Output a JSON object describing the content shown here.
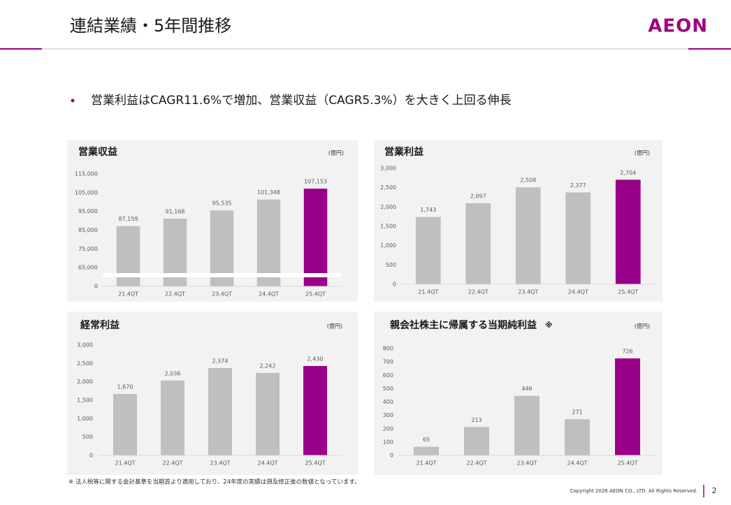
{
  "header": {
    "title": "連結業績・5年間推移",
    "logo": "AEON"
  },
  "bullet": "営業利益はCAGR11.6%で増加、営業収益（CAGR5.3%）を大きく上回る伸長",
  "chart_data": [
    {
      "type": "bar",
      "title": "営業収益",
      "unit": "(億円)",
      "categories": [
        "21.4QT",
        "22.4QT",
        "23.4QT",
        "24.4QT",
        "25.4QT"
      ],
      "values": [
        87159,
        91168,
        95535,
        101348,
        107153
      ],
      "value_labels": [
        "87,159",
        "91,168",
        "95,535",
        "101,348",
        "107,153"
      ],
      "colors": [
        "#bfbfbf",
        "#bfbfbf",
        "#bfbfbf",
        "#bfbfbf",
        "#990088"
      ],
      "ylim": [
        0,
        115000
      ],
      "axis_break": [
        0,
        55000
      ],
      "yticks": [
        0,
        {
          "value": 65000,
          "label": "65,000"
        },
        {
          "value": 75000,
          "label": "75,000"
        },
        {
          "value": 85000,
          "label": "85,000"
        },
        {
          "value": 95000,
          "label": "95,000"
        },
        {
          "value": 105000,
          "label": "105,000"
        },
        {
          "value": 115000,
          "label": "115,000"
        }
      ]
    },
    {
      "type": "bar",
      "title": "営業利益",
      "unit": "(億円)",
      "categories": [
        "21.4QT",
        "22.4QT",
        "23.4QT",
        "24.4QT",
        "25.4QT"
      ],
      "values": [
        1743,
        2097,
        2508,
        2377,
        2704
      ],
      "value_labels": [
        "1,743",
        "2,097",
        "2,508",
        "2,377",
        "2,704"
      ],
      "colors": [
        "#bfbfbf",
        "#bfbfbf",
        "#bfbfbf",
        "#bfbfbf",
        "#990088"
      ],
      "ylim": [
        0,
        3000
      ],
      "yticks": [
        0,
        500,
        {
          "value": 1000,
          "label": "1,000"
        },
        {
          "value": 1500,
          "label": "1,500"
        },
        {
          "value": 2000,
          "label": "2,000"
        },
        {
          "value": 2500,
          "label": "2,500"
        },
        {
          "value": 3000,
          "label": "3,000"
        }
      ]
    },
    {
      "type": "bar",
      "title": "経常利益",
      "unit": "(億円)",
      "categories": [
        "21.4QT",
        "22.4QT",
        "23.4QT",
        "24.4QT",
        "25.4QT"
      ],
      "values": [
        1670,
        2036,
        2374,
        2242,
        2430
      ],
      "value_labels": [
        "1,670",
        "2,036",
        "2,374",
        "2,242",
        "2,430"
      ],
      "colors": [
        "#bfbfbf",
        "#bfbfbf",
        "#bfbfbf",
        "#bfbfbf",
        "#990088"
      ],
      "ylim": [
        0,
        3000
      ],
      "yticks": [
        0,
        500,
        {
          "value": 1000,
          "label": "1,000"
        },
        {
          "value": 1500,
          "label": "1,500"
        },
        {
          "value": 2000,
          "label": "2,000"
        },
        {
          "value": 2500,
          "label": "2,500"
        },
        {
          "value": 3000,
          "label": "3,000"
        }
      ]
    },
    {
      "type": "bar",
      "title": "親会社株主に帰属する当期純利益",
      "note_mark": "※",
      "unit": "(億円)",
      "categories": [
        "21.4QT",
        "22.4QT",
        "23.4QT",
        "24.4QT",
        "25.4QT"
      ],
      "values": [
        65,
        213,
        446,
        271,
        726
      ],
      "colors": [
        "#bfbfbf",
        "#bfbfbf",
        "#bfbfbf",
        "#bfbfbf",
        "#990088"
      ],
      "ylim": [
        0,
        800
      ],
      "yticks": [
        0,
        100,
        200,
        300,
        400,
        500,
        600,
        700,
        800
      ]
    }
  ],
  "footnote": "※ 法人税等に関する会計基準を当期首より適用しており、24年度の実績は遡及修正後の数値となっています。",
  "copyright": "Copyright 2026 AEON CO., LTD. All Rights Reserved.",
  "page_number": "2"
}
